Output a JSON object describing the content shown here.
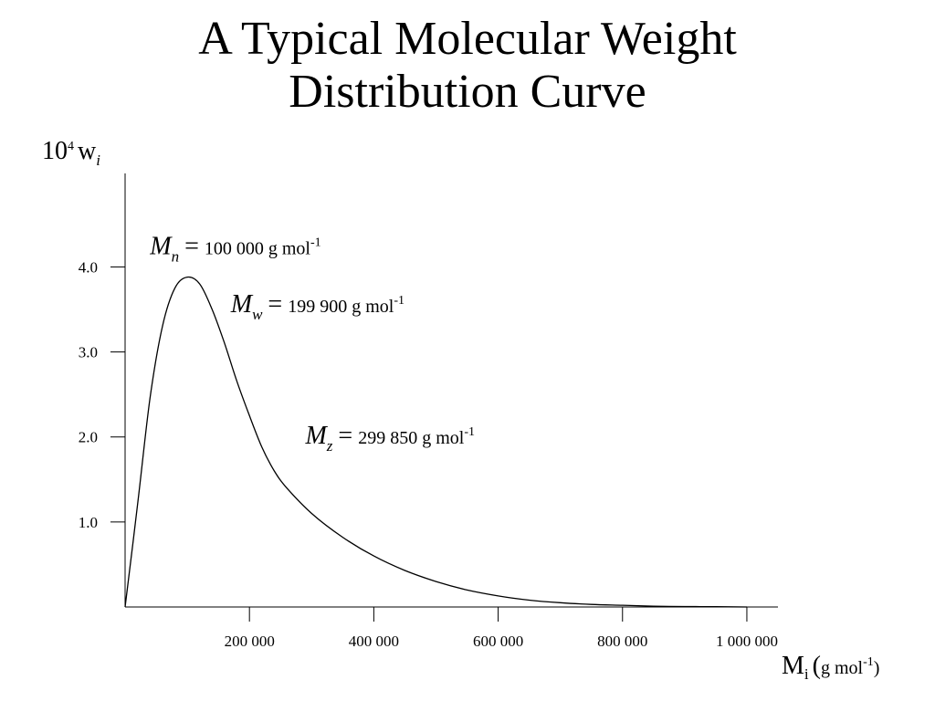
{
  "chart_data": {
    "type": "line",
    "title_line1": "A Typical Molecular Weight",
    "title_line2": "Distribution Curve",
    "ylabel": {
      "base": "10",
      "exp": "4",
      "var": "w",
      "sub": "i"
    },
    "xlabel": {
      "var": "M",
      "sub": "i",
      "open": "(",
      "unit": "g mol",
      "unit_exp": "-1",
      "close": ")"
    },
    "xlim": [
      0,
      1050000
    ],
    "ylim": [
      0,
      5.1
    ],
    "x_ticks": [
      {
        "value": 200000,
        "label": "200 000"
      },
      {
        "value": 400000,
        "label": "400 000"
      },
      {
        "value": 600000,
        "label": "600 000"
      },
      {
        "value": 800000,
        "label": "800 000"
      },
      {
        "value": 1000000,
        "label": "1 000 000"
      }
    ],
    "y_ticks": [
      {
        "value": 1.0,
        "label": "1.0"
      },
      {
        "value": 2.0,
        "label": "2.0"
      },
      {
        "value": 3.0,
        "label": "3.0"
      },
      {
        "value": 4.0,
        "label": "4.0"
      }
    ],
    "series": [
      {
        "x": [
          0,
          20000,
          40000,
          60000,
          80000,
          100000,
          120000,
          140000,
          160000,
          180000,
          200000,
          220000,
          240000,
          260000,
          300000,
          350000,
          400000,
          450000,
          500000,
          550000,
          600000,
          650000,
          700000,
          750000,
          800000,
          850000,
          900000,
          950000,
          1000000
        ],
        "y": [
          0.0,
          1.2,
          2.45,
          3.3,
          3.75,
          3.88,
          3.8,
          3.5,
          3.1,
          2.65,
          2.25,
          1.88,
          1.6,
          1.4,
          1.1,
          0.82,
          0.6,
          0.43,
          0.3,
          0.2,
          0.13,
          0.08,
          0.05,
          0.03,
          0.02,
          0.01,
          0.005,
          0.003,
          0.0
        ]
      }
    ],
    "annotations": [
      {
        "symbol": "M",
        "sub": "n",
        "eq": "=",
        "value": "100 000 g mol",
        "exp": "-1",
        "x": 40000,
        "y": 4.15
      },
      {
        "symbol": "M",
        "sub": "w",
        "eq": "=",
        "value": "199 900 g mol",
        "exp": "-1",
        "x": 170000,
        "y": 3.47
      },
      {
        "symbol": "M",
        "sub": "z",
        "eq": "=",
        "value": "299 850 g mol",
        "exp": "-1",
        "x": 290000,
        "y": 1.92
      }
    ]
  }
}
